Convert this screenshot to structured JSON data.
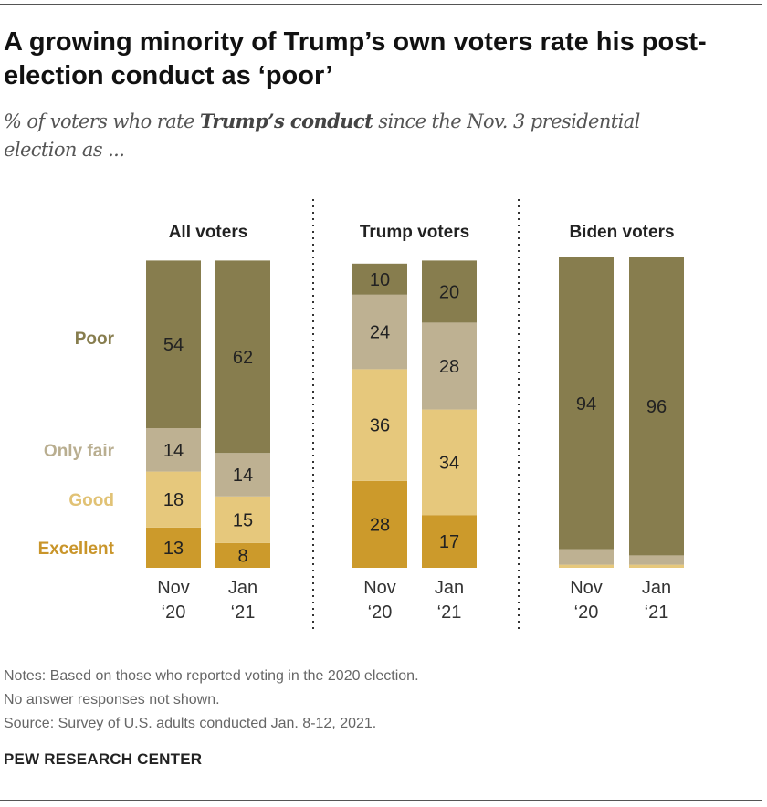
{
  "title": "A growing minority of Trump’s own voters rate his post-election conduct as ‘poor’",
  "subtitle": {
    "pre": "% of voters who rate ",
    "bold": "Trump’s conduct",
    "post": " since the Nov. 3 presidential election as ..."
  },
  "notes": [
    "Notes: Based on those who reported voting in the 2020 election.",
    "No answer responses not shown.",
    "Source: Survey of U.S. adults conducted Jan. 8-12, 2021."
  ],
  "organization": "PEW RESEARCH CENTER",
  "chart_data": {
    "type": "bar",
    "stacked": true,
    "categories": [
      [
        "Nov",
        "‘20"
      ],
      [
        "Jan",
        "‘21"
      ]
    ],
    "series_order": [
      "Excellent",
      "Good",
      "Only fair",
      "Poor"
    ],
    "colors": {
      "Poor": "#877d4e",
      "Only fair": "#beb192",
      "Good": "#e6c87c",
      "Excellent": "#cc9a2b"
    },
    "label_colors": {
      "Poor": "#877d4e",
      "Only fair": "#b9ae90",
      "Good": "#e1c275",
      "Excellent": "#c9952a"
    },
    "panels": [
      {
        "title": "All voters",
        "values": {
          "Excellent": [
            13,
            8
          ],
          "Good": [
            18,
            15
          ],
          "Only fair": [
            14,
            14
          ],
          "Poor": [
            54,
            62
          ]
        },
        "labeled": true
      },
      {
        "title": "Trump voters",
        "values": {
          "Excellent": [
            28,
            17
          ],
          "Good": [
            36,
            34
          ],
          "Only fair": [
            24,
            28
          ],
          "Poor": [
            10,
            20
          ]
        },
        "labeled": true
      },
      {
        "title": "Biden voters",
        "values": {
          "Excellent": [
            0,
            0
          ],
          "Good": [
            1,
            1
          ],
          "Only fair": [
            5,
            3
          ],
          "Poor": [
            94,
            96
          ]
        },
        "labeled_series": [
          "Poor"
        ]
      }
    ],
    "legend_placement": "left (inline labels beside first panel)",
    "grid": false
  }
}
